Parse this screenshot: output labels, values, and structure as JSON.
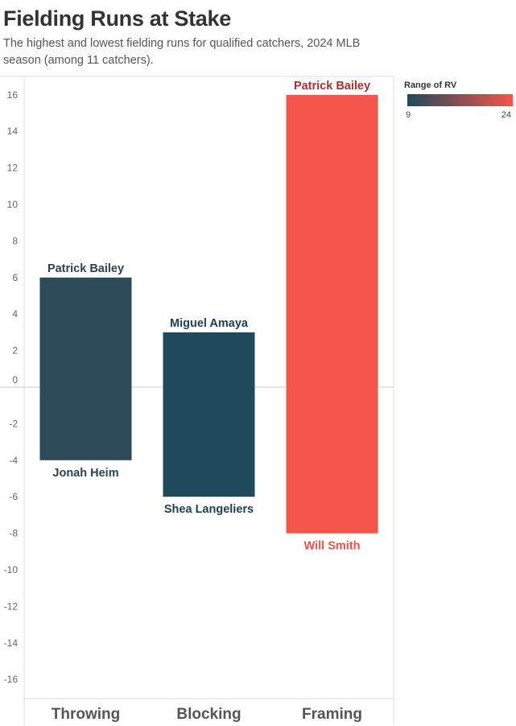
{
  "header": {
    "title": "Fielding Runs at Stake",
    "subtitle": "The highest and lowest fielding runs for qualified catchers, 2024 MLB season (among 11 catchers)."
  },
  "legend": {
    "title": "Range of RV",
    "min": "9",
    "max": "24",
    "color_min": "#1e4a5c",
    "color_max": "#f5554a",
    "placement": "top-right"
  },
  "chart_data": {
    "type": "bar",
    "categories": [
      "Throwing",
      "Blocking",
      "Framing"
    ],
    "ylim": [
      -17,
      17
    ],
    "yticks": [
      16,
      14,
      12,
      10,
      8,
      6,
      4,
      2,
      0,
      -2,
      -4,
      -6,
      -8,
      -10,
      -12,
      -14,
      -16
    ],
    "zero_line": true,
    "bars": [
      {
        "category": "Throwing",
        "high": 6,
        "low": -4,
        "range_rv": 10,
        "high_player": "Patrick Bailey",
        "low_player": "Jonah Heim",
        "color": "#2c4a58",
        "high_label_color": "#2a4250",
        "low_label_color": "#2a4250"
      },
      {
        "category": "Blocking",
        "high": 3,
        "low": -6,
        "range_rv": 9,
        "high_player": "Miguel Amaya",
        "low_player": "Shea Langeliers",
        "color": "#1e4a5c",
        "high_label_color": "#1e4050",
        "low_label_color": "#1e4050"
      },
      {
        "category": "Framing",
        "high": 16,
        "low": -8,
        "range_rv": 24,
        "high_player": "Patrick Bailey",
        "low_player": "Will Smith",
        "color": "#f5554a",
        "high_label_color": "#a83030",
        "low_label_color": "#e85048"
      }
    ]
  }
}
